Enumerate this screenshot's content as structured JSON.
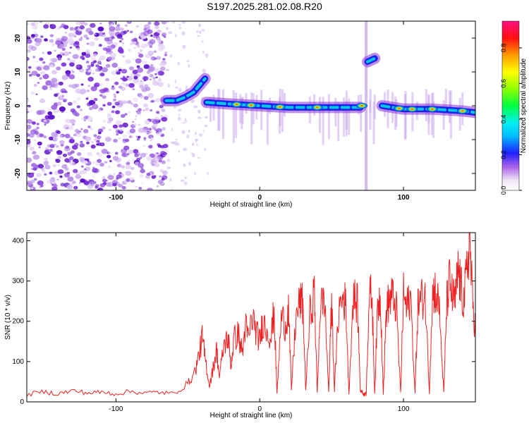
{
  "figure": {
    "title": "S197.2025.281.02.08.R20"
  },
  "chart_data": [
    {
      "type": "heatmap",
      "title": "S197.2025.281.02.08.R20",
      "xlabel": "Height of straight line (km)",
      "ylabel": "Frequency (Hz)",
      "xlim": [
        -162,
        150
      ],
      "ylim": [
        -25,
        25
      ],
      "x_ticks": [
        -100,
        0,
        100
      ],
      "y_ticks": [
        -20,
        -10,
        0,
        10,
        20
      ],
      "colorbar": {
        "label": "Normalized spectral amplitude",
        "range": [
          0,
          0.95
        ],
        "ticks": [
          0.0,
          0.2,
          0.4,
          0.6,
          0.8
        ],
        "colormap": "rainbow (white/violet low, red/magenta high)"
      },
      "ridge": {
        "segments": [
          {
            "x": [
              -65,
              -58,
              -52,
              -46,
              -42,
              -38
            ],
            "y": [
              1.5,
              1.5,
              2.5,
              4,
              6,
              8
            ]
          },
          {
            "x": [
              -37,
              -20,
              0,
              20,
              40,
              60,
              70
            ],
            "y": [
              1,
              0.5,
              0,
              -0.5,
              -0.5,
              -0.5,
              -0.5
            ]
          },
          {
            "x": [
              75,
              80
            ],
            "y": [
              13,
              14
            ]
          },
          {
            "x": [
              85,
              100,
              120,
              140,
              150
            ],
            "y": [
              0,
              -1,
              -1,
              -1.5,
              -2
            ]
          }
        ],
        "peaks_red": [
          -16,
          -6,
          14,
          40,
          71,
          97,
          106,
          120,
          141
        ]
      },
      "noise_region_x": [
        -162,
        -65
      ]
    },
    {
      "type": "line",
      "xlabel": "Height of straight line (km)",
      "ylabel": "SNR (10 * v/v)",
      "xlim": [
        -162,
        150
      ],
      "ylim": [
        0,
        420
      ],
      "x_ticks": [
        -100,
        0,
        100
      ],
      "y_ticks": [
        0,
        100,
        200,
        300,
        400
      ],
      "color": "#ee2222",
      "x": [
        -162,
        -150,
        -140,
        -130,
        -120,
        -110,
        -100,
        -90,
        -80,
        -70,
        -60,
        -50,
        -45,
        -42,
        -40,
        -38,
        -35,
        -32,
        -30,
        -28,
        -25,
        -22,
        -20,
        -18,
        -15,
        -12,
        -10,
        -8,
        -5,
        -2,
        0,
        2,
        5,
        8,
        10,
        12,
        15,
        18,
        20,
        22,
        25,
        28,
        30,
        32,
        35,
        38,
        40,
        42,
        45,
        48,
        50,
        52,
        55,
        58,
        60,
        62,
        65,
        68,
        70,
        72,
        74,
        76,
        78,
        80,
        82,
        84,
        86,
        88,
        90,
        92,
        95,
        98,
        100,
        102,
        105,
        108,
        110,
        112,
        115,
        118,
        120,
        122,
        125,
        128,
        130,
        132,
        134,
        136,
        138,
        140,
        142,
        144,
        146,
        148,
        150
      ],
      "values": [
        18,
        25,
        20,
        28,
        22,
        24,
        20,
        26,
        22,
        24,
        20,
        45,
        75,
        120,
        160,
        110,
        40,
        90,
        130,
        60,
        140,
        160,
        90,
        155,
        170,
        120,
        190,
        160,
        210,
        170,
        150,
        200,
        180,
        160,
        230,
        20,
        210,
        190,
        230,
        30,
        200,
        250,
        240,
        30,
        220,
        270,
        20,
        230,
        260,
        25,
        250,
        30,
        230,
        260,
        240,
        20,
        260,
        240,
        30,
        20,
        20,
        250,
        270,
        20,
        240,
        260,
        20,
        230,
        250,
        260,
        240,
        20,
        270,
        230,
        260,
        20,
        240,
        250,
        270,
        25,
        260,
        280,
        230,
        20,
        240,
        300,
        260,
        250,
        330,
        280,
        250,
        320,
        410,
        250,
        180
      ]
    }
  ]
}
